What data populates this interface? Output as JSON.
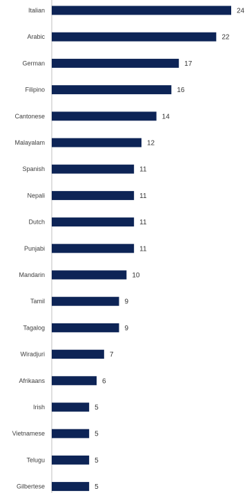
{
  "chart_data": {
    "type": "bar",
    "orientation": "horizontal",
    "categories": [
      "Italian",
      "Arabic",
      "German",
      "Filipino",
      "Cantonese",
      "Malayalam",
      "Spanish",
      "Nepali",
      "Dutch",
      "Punjabi",
      "Mandarin",
      "Tamil",
      "Tagalog",
      "Wiradjuri",
      "Afrikaans",
      "Irish",
      "Vietnamese",
      "Telugu",
      "Gilbertese"
    ],
    "values": [
      24,
      22,
      17,
      16,
      14,
      12,
      11,
      11,
      11,
      11,
      10,
      9,
      9,
      7,
      6,
      5,
      5,
      5,
      5
    ],
    "value_labels": [
      "24",
      "22",
      "17",
      "16",
      "14",
      "12",
      "11",
      "11",
      "11",
      "11",
      "10",
      "9",
      "9",
      "7",
      "6",
      "5",
      "5",
      "5",
      "5"
    ],
    "xlim": [
      0,
      24
    ],
    "grid": false,
    "legend": "none",
    "colors": {
      "bar": "#0d2456",
      "axis": "#bfbfbf"
    }
  }
}
